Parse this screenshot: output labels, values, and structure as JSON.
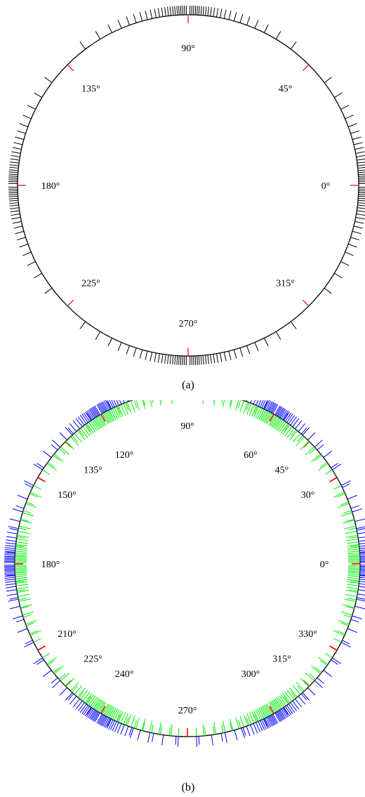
{
  "colors": {
    "circle": "#000000",
    "primary_ticks": "#ff0000",
    "ticks_a": "#000000",
    "inner_ticks_b": "#00ee00",
    "outer_ticks_b": "#0000ff",
    "mid_ticks_b": "#808000"
  },
  "figure_a": {
    "caption": "(a)",
    "angle_labels": [
      {
        "deg": 90,
        "text": "90°"
      },
      {
        "deg": 45,
        "text": "45°"
      },
      {
        "deg": 135,
        "text": "135°"
      },
      {
        "deg": 180,
        "text": "180°"
      },
      {
        "deg": 0,
        "text": "0°"
      },
      {
        "deg": 225,
        "text": "225°"
      },
      {
        "deg": 315,
        "text": "315°"
      },
      {
        "deg": 270,
        "text": "270°"
      }
    ],
    "red_tick_degrees": [
      0,
      45,
      90,
      135,
      180,
      225,
      270,
      315
    ],
    "black_tick_degrees_first_quadrant": [
      0.6,
      1.2,
      1.8,
      2.4,
      3.0,
      3.6,
      4.3,
      5.0,
      5.8,
      6.6,
      7.5,
      8.5,
      9.6,
      10.8,
      12.2,
      13.8,
      15.6,
      17.7,
      20.1,
      23.0,
      26.5,
      31.0,
      37.0,
      53.0,
      59.0,
      63.5,
      67.0,
      69.9,
      72.3,
      74.4,
      76.2,
      77.8,
      79.2,
      80.4,
      81.5,
      82.5,
      83.4,
      84.2,
      85.0,
      85.7,
      86.4,
      87.0,
      87.6,
      88.2,
      88.8,
      89.4
    ]
  },
  "figure_b": {
    "caption": "(b)",
    "angle_labels": [
      {
        "deg": 90,
        "text": "90°"
      },
      {
        "deg": 60,
        "text": "60°"
      },
      {
        "deg": 120,
        "text": "120°"
      },
      {
        "deg": 45,
        "text": "45°"
      },
      {
        "deg": 135,
        "text": "135°"
      },
      {
        "deg": 30,
        "text": "30°"
      },
      {
        "deg": 150,
        "text": "150°"
      },
      {
        "deg": 0,
        "text": "0°"
      },
      {
        "deg": 180,
        "text": "180°"
      },
      {
        "deg": 330,
        "text": "330°"
      },
      {
        "deg": 210,
        "text": "210°"
      },
      {
        "deg": 315,
        "text": "315°"
      },
      {
        "deg": 225,
        "text": "225°"
      },
      {
        "deg": 300,
        "text": "300°"
      },
      {
        "deg": 240,
        "text": "240°"
      },
      {
        "deg": 270,
        "text": "270°"
      }
    ],
    "red_tick_degrees": [
      0,
      30,
      60,
      90,
      120,
      150,
      180,
      210,
      240,
      270,
      300,
      330
    ],
    "olive_tick_degrees": [
      45,
      135,
      225,
      315
    ],
    "cluster_degrees": [
      0,
      60,
      120,
      180,
      240,
      300
    ],
    "cluster_offsets": [
      0.5,
      1.0,
      1.5,
      2.0,
      2.5,
      3.0,
      3.6,
      4.2,
      4.9,
      5.6,
      6.4,
      7.3,
      8.3,
      9.5,
      10.9,
      12.6,
      14.7,
      17.3,
      20.5,
      24.5
    ],
    "cluster_offsets_outer": [
      0.4,
      0.8,
      1.2,
      1.6,
      2.0,
      2.4,
      2.9,
      3.4,
      3.9,
      4.5,
      5.1,
      5.8,
      6.6,
      7.5,
      8.6,
      10.0,
      11.8,
      14.2,
      17.5,
      22.0,
      27.0
    ]
  }
}
